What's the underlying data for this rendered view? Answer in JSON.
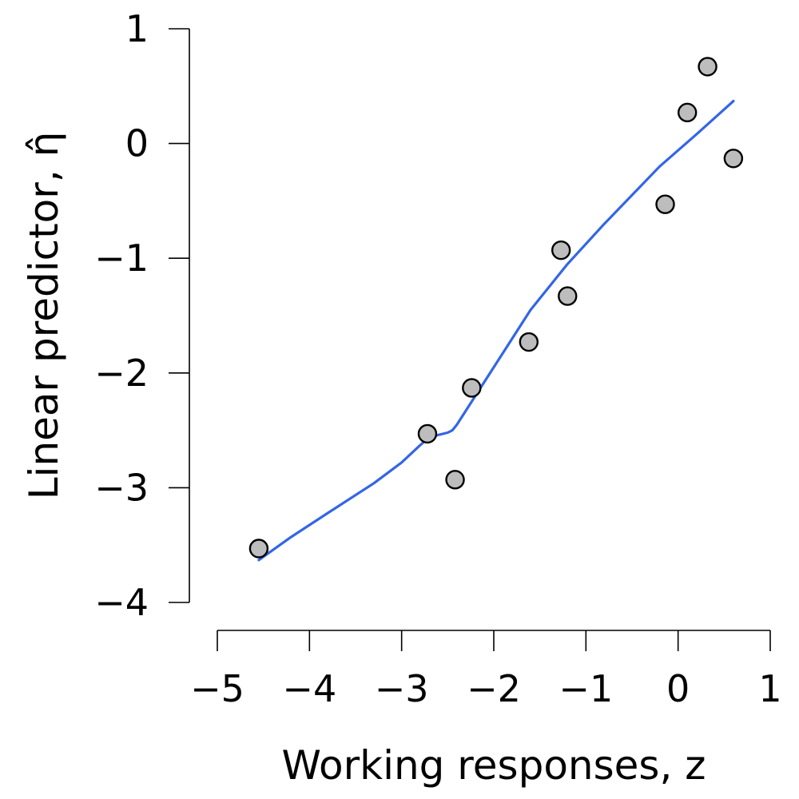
{
  "chart_data": {
    "type": "scatter",
    "title": "",
    "xlabel": "Working responses, z",
    "ylabel": "Linear predictor, η̂",
    "xlim": [
      -5,
      1
    ],
    "ylim": [
      -4,
      1
    ],
    "x_ticks": [
      -5,
      -4,
      -3,
      -2,
      -1,
      0,
      1
    ],
    "y_ticks": [
      -4,
      -3,
      -2,
      -1,
      0,
      1
    ],
    "x_tick_labels": [
      "−5",
      "−4",
      "−3",
      "−2",
      "−1",
      "0",
      "1"
    ],
    "y_tick_labels": [
      "−4",
      "−3",
      "−2",
      "−1",
      "0",
      "1"
    ],
    "grid": false,
    "legend": "none",
    "series": [
      {
        "type": "scatter",
        "x": [
          -4.55,
          -2.72,
          -2.42,
          -2.24,
          -1.62,
          -1.27,
          -1.2,
          -0.14,
          0.1,
          0.32,
          0.6
        ],
        "y": [
          -3.53,
          -2.53,
          -2.93,
          -2.13,
          -1.73,
          -0.93,
          -1.33,
          -0.53,
          0.27,
          0.67,
          -0.13
        ],
        "color": "#bdbdbd"
      },
      {
        "type": "line",
        "x": [
          -4.55,
          -4.2,
          -3.8,
          -3.3,
          -3.0,
          -2.8,
          -2.7,
          -2.6,
          -2.5,
          -2.45,
          -2.4,
          -2.2,
          -2.0,
          -1.6,
          -1.2,
          -0.8,
          -0.2,
          0.2,
          0.6
        ],
        "y": [
          -3.63,
          -3.43,
          -3.22,
          -2.96,
          -2.78,
          -2.63,
          -2.56,
          -2.54,
          -2.52,
          -2.5,
          -2.45,
          -2.2,
          -1.95,
          -1.45,
          -1.05,
          -0.7,
          -0.2,
          0.08,
          0.37
        ],
        "color": "#3366e6"
      }
    ]
  }
}
